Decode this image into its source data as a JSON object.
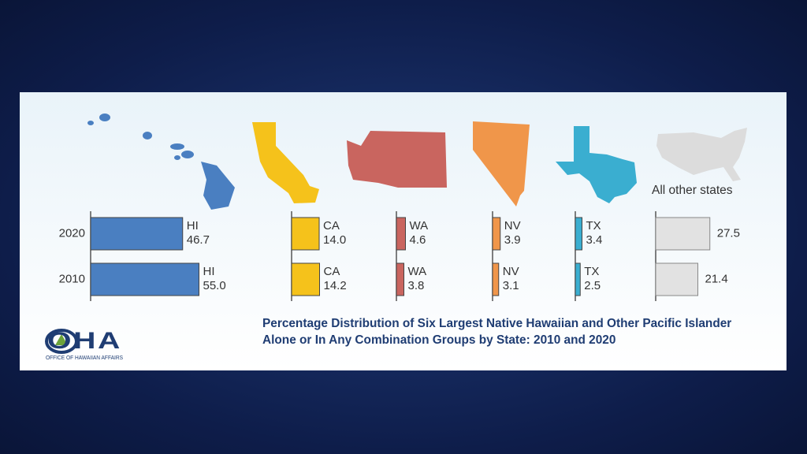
{
  "chart_data": {
    "type": "bar",
    "title": "Percentage Distribution of Six Largest Native Hawaiian and Other Pacific Islander Alone or In Any Combination Groups by State: 2010 and 2020",
    "categories": [
      "2020",
      "2010"
    ],
    "series": [
      {
        "name": "HI",
        "color": "#4a7fc1",
        "values": [
          46.7,
          55.0
        ],
        "value_labels": [
          "46.7",
          "55.0"
        ]
      },
      {
        "name": "CA",
        "color": "#f5c21b",
        "values": [
          14.0,
          14.2
        ],
        "value_labels": [
          "14.0",
          "14.2"
        ]
      },
      {
        "name": "WA",
        "color": "#c9655f",
        "values": [
          4.6,
          3.8
        ],
        "value_labels": [
          "4.6",
          "3.8"
        ]
      },
      {
        "name": "NV",
        "color": "#f0964a",
        "values": [
          3.9,
          3.1
        ],
        "value_labels": [
          "3.9",
          "3.1"
        ]
      },
      {
        "name": "TX",
        "color": "#3aaed0",
        "values": [
          3.4,
          2.5
        ],
        "value_labels": [
          "3.4",
          "2.5"
        ]
      },
      {
        "name": "All other states",
        "color": "#e2e2e2",
        "values": [
          27.5,
          21.4
        ],
        "value_labels": [
          "27.5",
          "21.4"
        ]
      }
    ]
  },
  "logo": {
    "text": "OHA",
    "subtitle": "OFFICE OF HAWAIIAN AFFAIRS"
  }
}
